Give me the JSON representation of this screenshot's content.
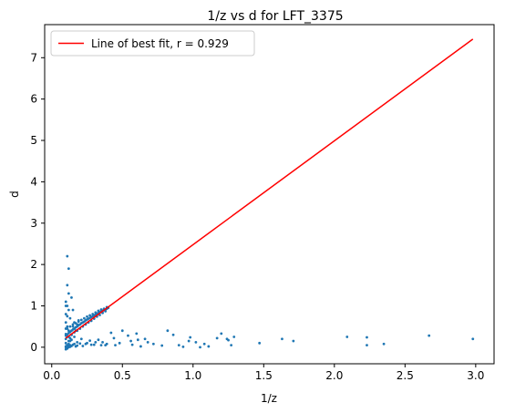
{
  "chart_data": {
    "type": "scatter",
    "title": "1/z vs d for LFT_3375",
    "xlabel": "1/z",
    "ylabel": "d",
    "xlim": [
      -0.05,
      3.13
    ],
    "ylim": [
      -0.4,
      7.8
    ],
    "xticks": [
      0.0,
      0.5,
      1.0,
      1.5,
      2.0,
      2.5,
      3.0
    ],
    "xtick_labels": [
      "0.0",
      "0.5",
      "1.0",
      "1.5",
      "2.0",
      "2.5",
      "3.0"
    ],
    "yticks": [
      0,
      1,
      2,
      3,
      4,
      5,
      6,
      7
    ],
    "ytick_labels": [
      "0",
      "1",
      "2",
      "3",
      "4",
      "5",
      "6",
      "7"
    ],
    "grid": false,
    "legend_position": "top-left",
    "colors": {
      "scatter": "#1f77b4",
      "fit_line": "#ff0000"
    },
    "fit_line": {
      "name": "Line of best fit, r = 0.929",
      "x": [
        0.1,
        2.98
      ],
      "y": [
        0.22,
        7.45
      ]
    },
    "scatter": {
      "x": [
        0.1,
        0.11,
        0.12,
        0.13,
        0.14,
        0.15,
        0.16,
        0.17,
        0.18,
        0.19,
        0.2,
        0.21,
        0.22,
        0.23,
        0.24,
        0.25,
        0.26,
        0.27,
        0.28,
        0.29,
        0.3,
        0.31,
        0.32,
        0.33,
        0.34,
        0.35,
        0.36,
        0.37,
        0.38,
        0.39,
        0.4,
        0.11,
        0.13,
        0.15,
        0.17,
        0.19,
        0.21,
        0.23,
        0.25,
        0.27,
        0.29,
        0.31,
        0.33,
        0.35,
        0.37,
        0.39,
        0.12,
        0.14,
        0.16,
        0.18,
        0.2,
        0.22,
        0.24,
        0.26,
        0.28,
        0.3,
        0.32,
        0.34,
        0.36,
        0.38,
        0.1,
        0.1,
        0.1,
        0.1,
        0.1,
        0.1,
        0.1,
        0.1,
        0.1,
        0.11,
        0.11,
        0.11,
        0.11,
        0.11,
        0.11,
        0.11,
        0.12,
        0.12,
        0.12,
        0.12,
        0.12,
        0.13,
        0.13,
        0.14,
        0.14,
        0.15,
        0.15,
        0.16,
        0.17,
        0.18,
        0.19,
        0.1,
        0.1,
        0.11,
        0.11,
        0.12,
        0.12,
        0.13,
        0.13,
        0.14,
        0.15,
        0.16,
        0.17,
        0.18,
        0.2,
        0.22,
        0.25,
        0.28,
        0.31,
        0.35,
        0.12,
        0.13,
        0.14,
        0.16,
        0.18,
        0.21,
        0.24,
        0.27,
        0.3,
        0.33,
        0.36,
        0.38,
        0.39,
        0.42,
        0.45,
        0.5,
        0.56,
        0.6,
        0.63,
        0.66,
        0.72,
        0.82,
        0.9,
        0.93,
        0.98,
        1.02,
        1.05,
        1.11,
        1.2,
        1.24,
        1.25,
        1.29,
        1.47,
        1.63,
        1.71,
        2.09,
        2.23,
        2.23,
        2.35,
        2.67,
        2.98,
        0.44,
        0.48,
        0.54,
        0.57,
        0.61,
        0.68,
        0.78,
        0.86,
        0.97,
        1.08,
        1.17,
        1.27
      ],
      "y": [
        0.28,
        0.31,
        0.34,
        0.37,
        0.4,
        0.43,
        0.45,
        0.48,
        0.5,
        0.53,
        0.55,
        0.58,
        0.6,
        0.62,
        0.65,
        0.67,
        0.69,
        0.71,
        0.73,
        0.75,
        0.77,
        0.79,
        0.81,
        0.83,
        0.85,
        0.86,
        0.88,
        0.9,
        0.91,
        0.93,
        0.95,
        0.45,
        0.5,
        0.55,
        0.58,
        0.62,
        0.66,
        0.7,
        0.74,
        0.77,
        0.8,
        0.84,
        0.88,
        0.91,
        0.93,
        0.97,
        0.25,
        0.3,
        0.36,
        0.4,
        0.45,
        0.5,
        0.55,
        0.6,
        0.64,
        0.69,
        0.74,
        0.78,
        0.83,
        0.87,
        0.02,
        0.1,
        0.2,
        0.32,
        0.45,
        0.6,
        0.8,
        1.0,
        1.1,
        0.05,
        0.25,
        0.5,
        0.75,
        1.0,
        1.5,
        2.2,
        0.08,
        0.4,
        0.9,
        1.3,
        1.9,
        0.15,
        0.7,
        0.3,
        1.2,
        0.5,
        0.9,
        0.6,
        0.4,
        0.55,
        0.65,
        0.0,
        -0.05,
        0.03,
        -0.03,
        0.02,
        0.0,
        0.05,
        0.01,
        0.03,
        0.06,
        0.08,
        0.02,
        0.04,
        0.09,
        0.03,
        0.1,
        0.06,
        0.12,
        0.05,
        0.15,
        0.22,
        0.18,
        0.25,
        0.12,
        0.2,
        0.08,
        0.16,
        0.06,
        0.18,
        0.12,
        0.05,
        0.08,
        0.35,
        0.05,
        0.4,
        0.15,
        0.33,
        0.02,
        0.2,
        0.08,
        0.4,
        0.05,
        0.01,
        0.24,
        0.12,
        0.0,
        0.02,
        0.33,
        0.2,
        0.17,
        0.25,
        0.1,
        0.2,
        0.15,
        0.25,
        0.24,
        0.05,
        0.08,
        0.28,
        0.2,
        0.22,
        0.1,
        0.28,
        0.06,
        0.18,
        0.12,
        0.04,
        0.3,
        0.15,
        0.08,
        0.22,
        0.05
      ]
    }
  }
}
